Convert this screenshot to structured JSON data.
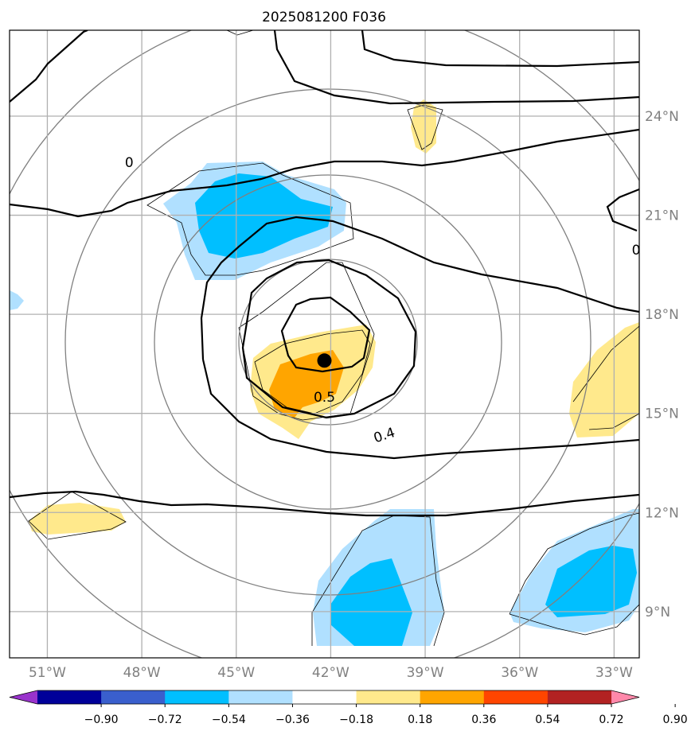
{
  "chart_data": {
    "type": "contour_map",
    "title": "2025081200 F036",
    "x_axis": {
      "ticks": [
        {
          "value": -51,
          "label": "51°W"
        },
        {
          "value": -48,
          "label": "48°W"
        },
        {
          "value": -45,
          "label": "45°W"
        },
        {
          "value": -42,
          "label": "42°W"
        },
        {
          "value": -39,
          "label": "39°W"
        },
        {
          "value": -36,
          "label": "36°W"
        },
        {
          "value": -33,
          "label": "33°W"
        }
      ],
      "range": [
        -52.2,
        -32.2
      ]
    },
    "y_axis": {
      "ticks": [
        {
          "value": 24,
          "label": "24°N"
        },
        {
          "value": 21,
          "label": "21°N"
        },
        {
          "value": 18,
          "label": "18°N"
        },
        {
          "value": 15,
          "label": "15°N"
        },
        {
          "value": 12,
          "label": "12°N"
        },
        {
          "value": 9,
          "label": "9°N"
        }
      ],
      "range": [
        7.6,
        26.6
      ]
    },
    "grid": true,
    "center_marker": {
      "lon": -42.2,
      "lat": 16.6
    },
    "contour_labels": [
      {
        "text": "0.5",
        "lon": -42.2,
        "lat": 15.5
      },
      {
        "text": "0.4",
        "lon": -40.3,
        "lat": 14.35
      },
      {
        "text": "0",
        "lon": -32.3,
        "lat": 19.95
      },
      {
        "text": "0",
        "lon": -48.4,
        "lat": 22.6
      }
    ],
    "colorbar": {
      "levels": [
        -0.9,
        -0.72,
        -0.54,
        -0.36,
        -0.18,
        0.18,
        0.36,
        0.54,
        0.72,
        0.9
      ],
      "tick_labels": [
        "−0.90",
        "−0.72",
        "−0.54",
        "−0.36",
        "−0.18",
        "0.18",
        "0.36",
        "0.54",
        "0.72",
        "0.90"
      ],
      "colors": [
        "#9933cc",
        "#000099",
        "#3a5fcd",
        "#00bfff",
        "#b0e0ff",
        "#ffffff",
        "#ffe98c",
        "#ffa500",
        "#ff4500",
        "#b22222",
        "#ff88aa"
      ],
      "extend": "both"
    }
  }
}
